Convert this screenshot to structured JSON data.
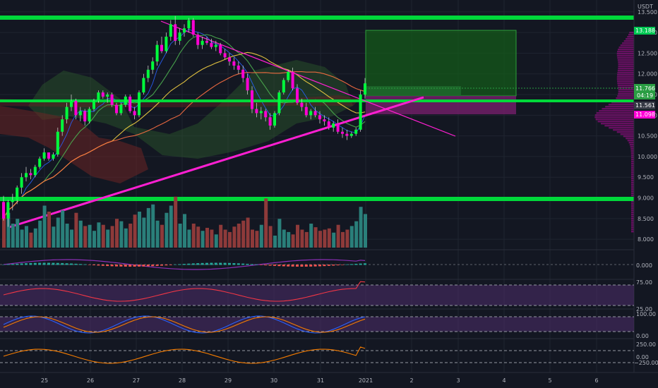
{
  "colors": {
    "background": "#131722",
    "grid": "#1f2430",
    "axis_text": "#b2b5be",
    "up": "#00ff3c",
    "down": "#ff00d4",
    "vol_up": "#2a7f7a",
    "vol_down": "#8e3a3a",
    "support": "#00d83a",
    "trendline": "#ff1fd2",
    "cloud_bull": "#2d5a2d",
    "cloud_bear": "#6b2424",
    "target_zone": "#145a1a",
    "stop_zone": "#701e66",
    "price_badge": "#2a9d43",
    "target_badge": "#00c853",
    "stop_badge": "#ff00d4",
    "rsi_band": "#4a2b66",
    "indicator_line": "#f23645",
    "signal_line": "#2962ff"
  },
  "price_axis": {
    "currency": "USDT",
    "min": 7.9,
    "max": 13.65,
    "ticks": [
      "13.500",
      "13.000",
      "12.500",
      "12.000",
      "11.500",
      "11.000",
      "10.500",
      "10.000",
      "9.500",
      "9.000",
      "8.500",
      "8.000"
    ]
  },
  "badges": {
    "target": "13.188",
    "current": "11.766",
    "countdown": "04:19",
    "level": "11.561",
    "stop": "11.098"
  },
  "time_axis": {
    "labels": [
      "25",
      "26",
      "27",
      "28",
      "29",
      "30",
      "31",
      "2021",
      "2",
      "3",
      "4",
      "5",
      "6"
    ]
  },
  "macd_axis": {
    "ticks": [
      "0.000"
    ]
  },
  "rsi_axis": {
    "ticks": [
      "75.00",
      "25.00"
    ],
    "overbought": 75,
    "oversold": 25
  },
  "stoch_axis": {
    "ticks": [
      "100.00",
      "0.00"
    ]
  },
  "cci_axis": {
    "ticks": [
      "250.00",
      "0.00",
      "−250.00"
    ]
  },
  "chart_data": {
    "type": "candlestick",
    "symbol_quote": "USDT",
    "start_index": 0,
    "ohlc": [
      [
        8.9,
        9.05,
        8.45,
        8.5
      ],
      [
        8.5,
        8.95,
        8.3,
        8.9
      ],
      [
        8.9,
        9.1,
        8.7,
        8.95
      ],
      [
        8.95,
        9.3,
        8.85,
        9.25
      ],
      [
        9.25,
        9.6,
        9.1,
        9.5
      ],
      [
        9.5,
        9.75,
        9.4,
        9.6
      ],
      [
        9.6,
        9.7,
        9.45,
        9.55
      ],
      [
        9.55,
        9.8,
        9.5,
        9.75
      ],
      [
        9.75,
        10.0,
        9.7,
        9.95
      ],
      [
        9.95,
        10.2,
        9.9,
        10.1
      ],
      [
        10.1,
        10.05,
        9.9,
        9.95
      ],
      [
        9.95,
        10.1,
        9.9,
        10.05
      ],
      [
        10.05,
        10.7,
        10.0,
        10.6
      ],
      [
        10.6,
        11.0,
        10.5,
        10.9
      ],
      [
        10.9,
        11.3,
        10.8,
        11.2
      ],
      [
        11.2,
        11.5,
        11.1,
        11.35
      ],
      [
        11.35,
        11.4,
        10.9,
        11.0
      ],
      [
        11.0,
        11.2,
        10.85,
        11.1
      ],
      [
        11.1,
        11.15,
        10.75,
        10.85
      ],
      [
        10.85,
        11.2,
        10.8,
        11.15
      ],
      [
        11.15,
        11.4,
        11.1,
        11.35
      ],
      [
        11.35,
        11.6,
        11.3,
        11.55
      ],
      [
        11.55,
        11.6,
        11.4,
        11.45
      ],
      [
        11.45,
        11.55,
        11.3,
        11.5
      ],
      [
        11.5,
        11.55,
        11.2,
        11.25
      ],
      [
        11.25,
        11.3,
        11.0,
        11.05
      ],
      [
        11.05,
        11.3,
        11.0,
        11.25
      ],
      [
        11.25,
        11.5,
        11.2,
        11.45
      ],
      [
        11.45,
        11.5,
        11.05,
        11.1
      ],
      [
        11.1,
        11.2,
        10.9,
        11.0
      ],
      [
        11.0,
        11.6,
        10.95,
        11.55
      ],
      [
        11.55,
        12.0,
        11.5,
        11.9
      ],
      [
        11.9,
        12.2,
        11.8,
        12.1
      ],
      [
        12.1,
        12.4,
        12.0,
        12.3
      ],
      [
        12.3,
        12.8,
        12.2,
        12.7
      ],
      [
        12.7,
        12.9,
        12.5,
        12.55
      ],
      [
        12.55,
        13.0,
        12.5,
        12.9
      ],
      [
        12.9,
        13.3,
        12.8,
        13.2
      ],
      [
        13.2,
        13.4,
        12.7,
        12.8
      ],
      [
        12.8,
        13.1,
        12.7,
        13.0
      ],
      [
        13.0,
        13.2,
        12.9,
        13.1
      ],
      [
        13.1,
        13.35,
        13.0,
        13.3
      ],
      [
        13.3,
        13.35,
        12.9,
        12.95
      ],
      [
        12.95,
        13.0,
        12.6,
        12.7
      ],
      [
        12.7,
        12.9,
        12.6,
        12.8
      ],
      [
        12.8,
        12.9,
        12.7,
        12.75
      ],
      [
        12.75,
        12.85,
        12.6,
        12.65
      ],
      [
        12.65,
        12.8,
        12.55,
        12.7
      ],
      [
        12.7,
        12.75,
        12.45,
        12.5
      ],
      [
        12.5,
        12.6,
        12.35,
        12.4
      ],
      [
        12.4,
        12.5,
        12.2,
        12.3
      ],
      [
        12.3,
        12.4,
        12.1,
        12.2
      ],
      [
        12.2,
        12.3,
        12.0,
        12.1
      ],
      [
        12.1,
        12.2,
        11.8,
        11.9
      ],
      [
        11.9,
        12.0,
        11.5,
        11.6
      ],
      [
        11.6,
        11.7,
        11.05,
        11.15
      ],
      [
        11.15,
        11.3,
        10.95,
        11.05
      ],
      [
        11.05,
        11.2,
        10.9,
        11.1
      ],
      [
        11.1,
        11.15,
        10.85,
        10.95
      ],
      [
        10.95,
        11.05,
        10.65,
        10.75
      ],
      [
        10.75,
        11.1,
        10.7,
        11.05
      ],
      [
        11.05,
        11.6,
        11.0,
        11.55
      ],
      [
        11.55,
        11.9,
        11.5,
        11.85
      ],
      [
        11.85,
        12.1,
        11.8,
        12.05
      ],
      [
        12.05,
        12.15,
        11.6,
        11.65
      ],
      [
        11.65,
        11.75,
        11.25,
        11.3
      ],
      [
        11.3,
        11.4,
        11.1,
        11.2
      ],
      [
        11.2,
        11.3,
        10.95,
        11.0
      ],
      [
        11.0,
        11.15,
        10.9,
        11.1
      ],
      [
        11.1,
        11.2,
        10.95,
        11.0
      ],
      [
        11.0,
        11.1,
        10.8,
        10.9
      ],
      [
        10.9,
        11.0,
        10.75,
        10.85
      ],
      [
        10.85,
        10.95,
        10.65,
        10.7
      ],
      [
        10.7,
        10.85,
        10.6,
        10.8
      ],
      [
        10.8,
        10.9,
        10.55,
        10.6
      ],
      [
        10.6,
        10.7,
        10.45,
        10.55
      ],
      [
        10.55,
        10.65,
        10.4,
        10.5
      ],
      [
        10.5,
        10.6,
        10.45,
        10.55
      ],
      [
        10.55,
        10.7,
        10.5,
        10.65
      ],
      [
        10.65,
        11.6,
        10.6,
        11.5
      ],
      [
        11.5,
        11.9,
        11.4,
        11.77
      ]
    ],
    "volume": [
      55,
      58,
      40,
      48,
      30,
      36,
      25,
      32,
      45,
      70,
      60,
      35,
      50,
      62,
      40,
      30,
      58,
      45,
      36,
      38,
      28,
      42,
      38,
      30,
      36,
      48,
      44,
      32,
      40,
      55,
      60,
      50,
      66,
      72,
      45,
      38,
      58,
      70,
      85,
      40,
      56,
      30,
      40,
      35,
      28,
      33,
      30,
      22,
      38,
      30,
      26,
      35,
      40,
      45,
      50,
      30,
      28,
      38,
      82,
      36,
      20,
      48,
      30,
      26,
      22,
      38,
      30,
      26,
      40,
      34,
      28,
      30,
      32,
      25,
      38,
      26,
      30,
      36,
      44,
      68,
      56
    ]
  }
}
